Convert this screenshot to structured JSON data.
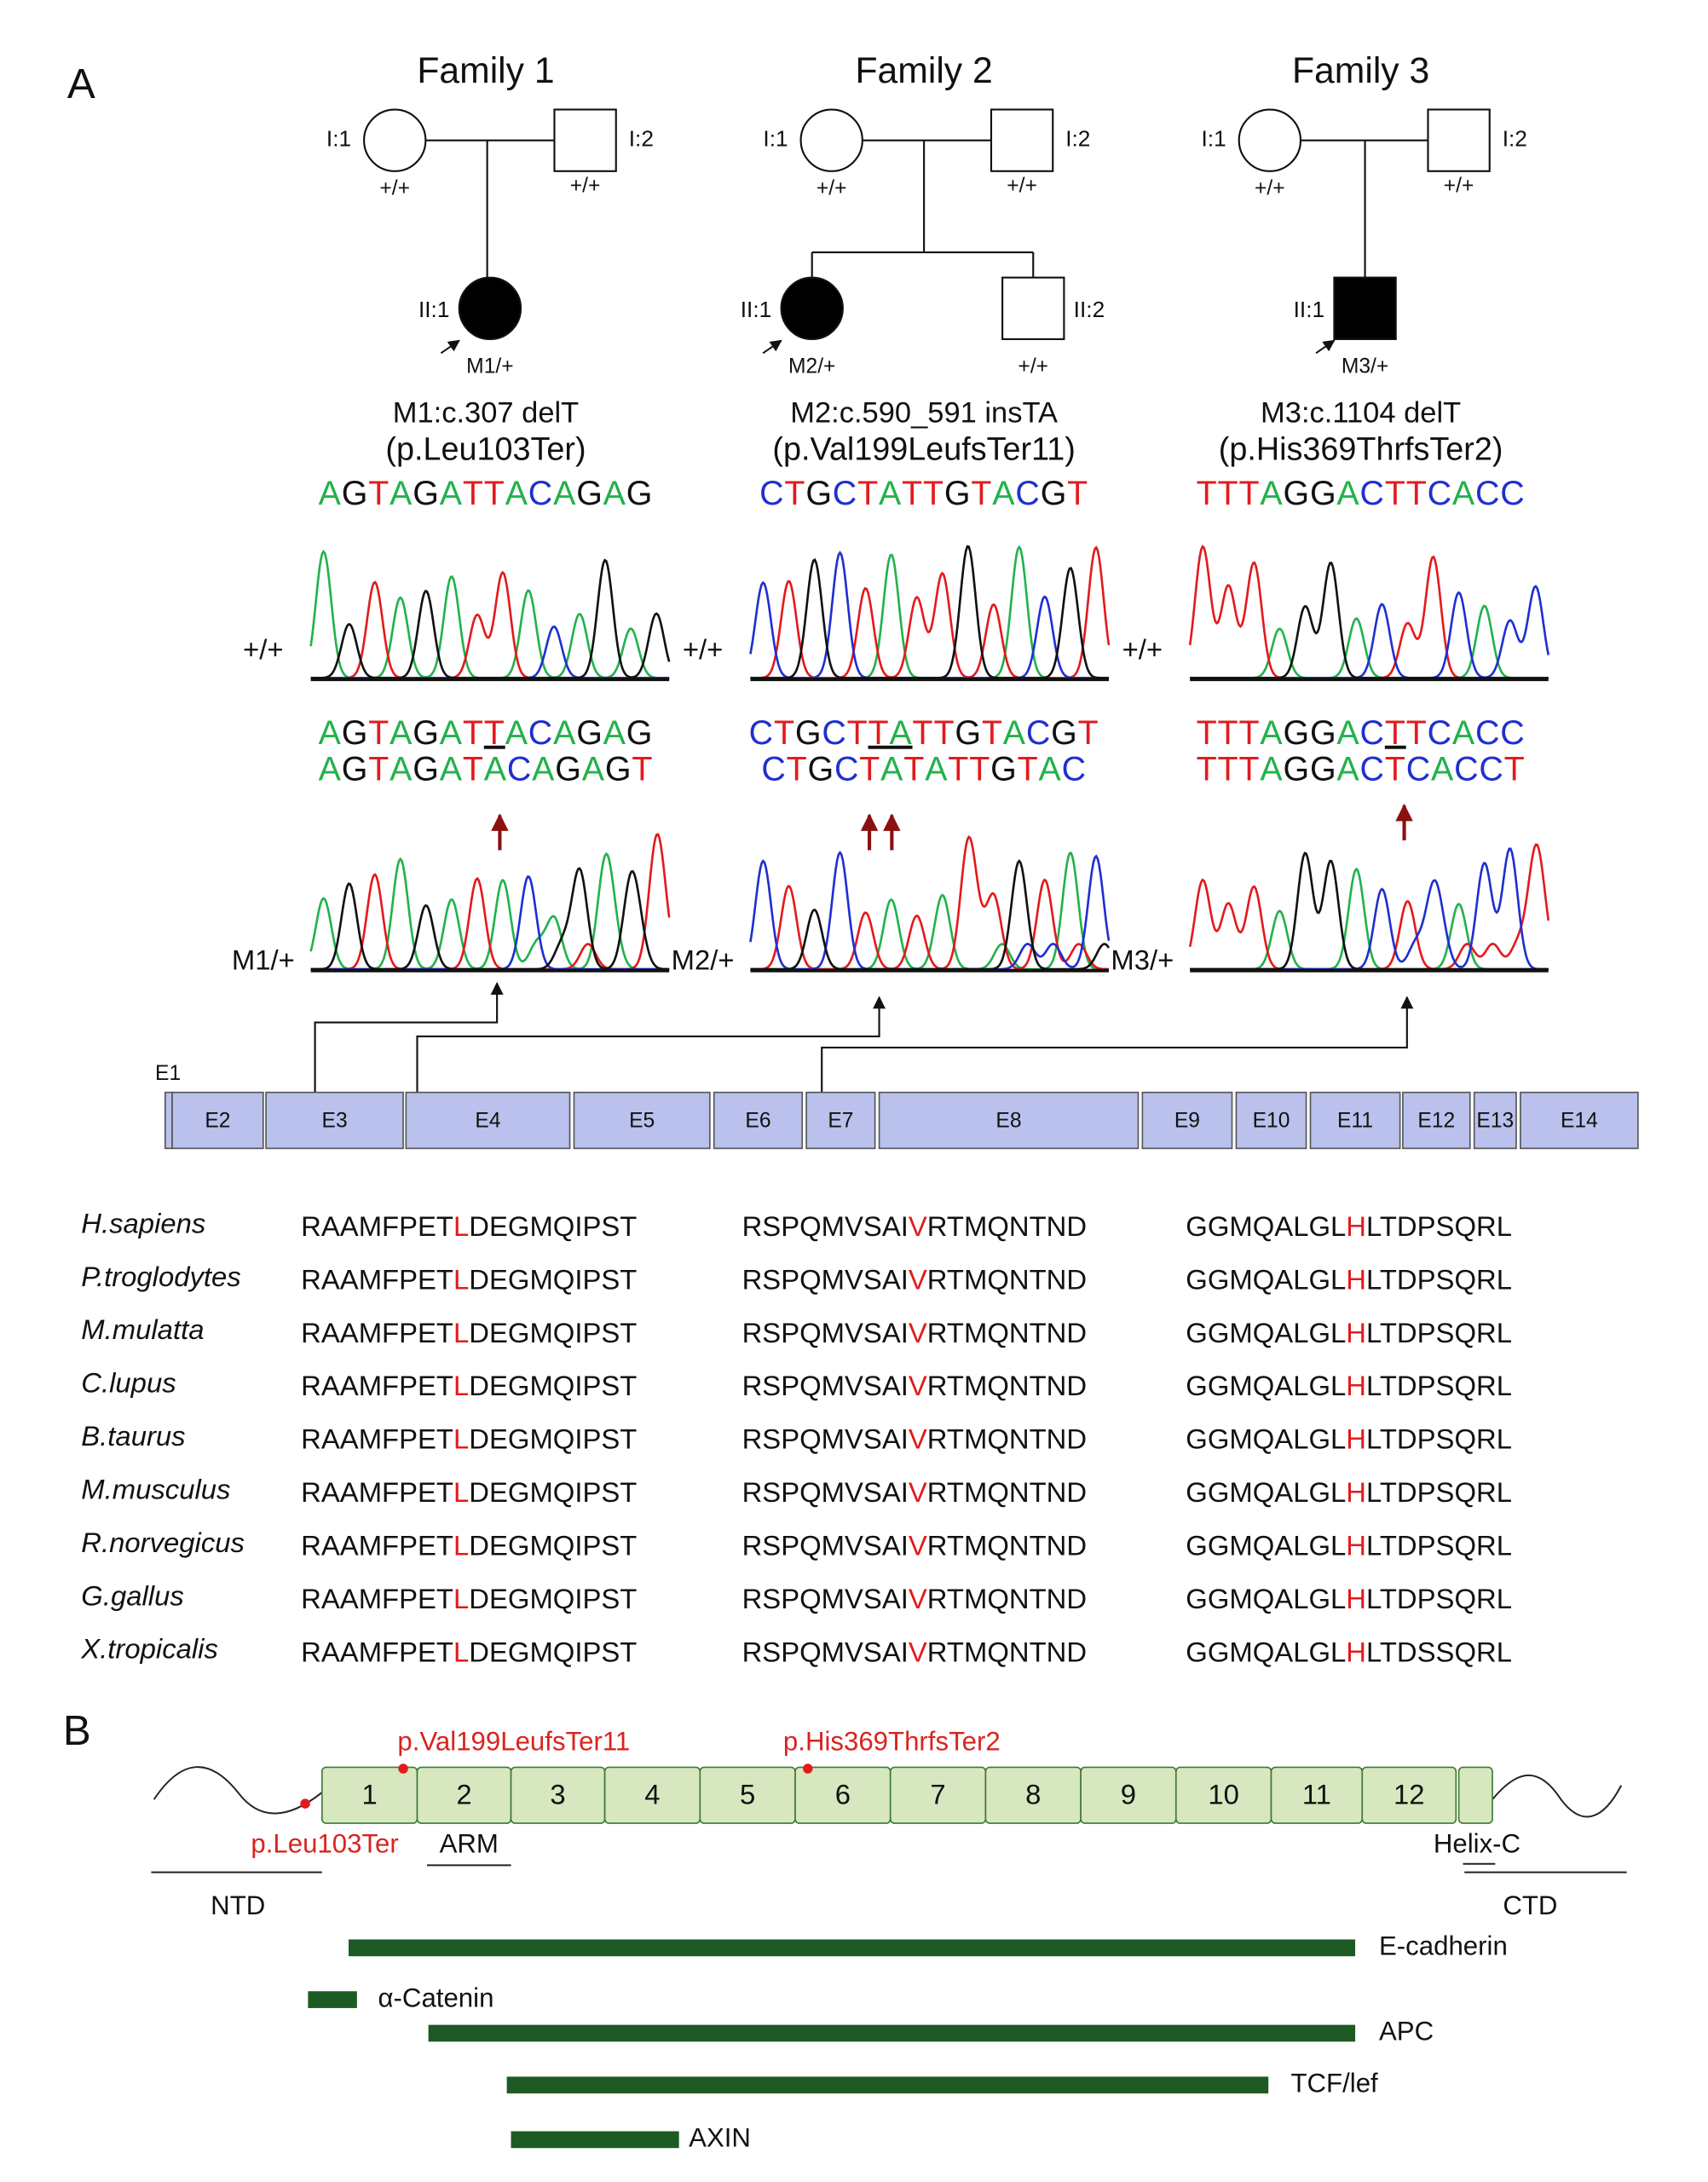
{
  "panel_labels": [
    "A",
    "B"
  ],
  "base_colors": {
    "A": "#22b24c",
    "T": "#e31a1c",
    "C": "#1f2fd0",
    "G": "#111111"
  },
  "families": [
    {
      "title": "Family 1",
      "members": [
        {
          "label": "I:1",
          "genotype": "+/+"
        },
        {
          "label": "I:2",
          "genotype": "+/+"
        },
        {
          "label": "II:1",
          "genotype": "M1/+"
        }
      ],
      "mutation": "M1:c.307 delT",
      "protein": "(p.Leu103Ter)",
      "reference": "AGTAGATTACAGAG",
      "wt_trace_label": "+/+",
      "wt_line": {
        "before": "AGTAGAT",
        "mark": "T",
        "after": "ACAGAG"
      },
      "mut_line": "AGTAGATACAGAGT",
      "mut_trace_label": "M1/+"
    },
    {
      "title": "Family 2",
      "members": [
        {
          "label": "I:1",
          "genotype": "+/+"
        },
        {
          "label": "I:2",
          "genotype": "+/+"
        },
        {
          "label": "II:1",
          "genotype": "M2/+"
        },
        {
          "label": "II:2",
          "genotype": "+/+"
        }
      ],
      "mutation": "M2:c.590_591 insTA",
      "protein": "(p.Val199LeufsTer11)",
      "reference": "CTGCTATTGTACGT",
      "wt_trace_label": "+/+",
      "wt_line": {
        "before": "CTGCT",
        "mark": "TA",
        "after": "TTGTACGT"
      },
      "mut_line": "CTGCTATATTGTAC",
      "mut_trace_label": "M2/+"
    },
    {
      "title": "Family 3",
      "members": [
        {
          "label": "I:1",
          "genotype": "+/+"
        },
        {
          "label": "I:2",
          "genotype": "+/+"
        },
        {
          "label": "II:1",
          "genotype": "M3/+"
        }
      ],
      "mutation": "M3:c.1104 delT",
      "protein": "(p.His369ThrfsTer2)",
      "reference": "TTTAGGACTTCACC",
      "wt_trace_label": "+/+",
      "wt_line": {
        "before": "TTTAGGAC",
        "mark": "T",
        "after": "TCACC"
      },
      "mut_line": "TTTAGGACTCACCT",
      "mut_trace_label": "M3/+"
    }
  ],
  "exons": [
    "E1",
    "E2",
    "E3",
    "E4",
    "E5",
    "E6",
    "E7",
    "E8",
    "E9",
    "E10",
    "E11",
    "E12",
    "E13",
    "E14"
  ],
  "alignment": {
    "species": [
      "H.sapiens",
      "P.troglodytes",
      "M.mulatta",
      "C.lupus",
      "B.taurus",
      "M.musculus",
      "R.norvegicus",
      "G.gallus",
      "X.tropicalis"
    ],
    "rows": [
      [
        {
          "before": "RAAMFPET",
          "site": "L",
          "after": "DEGMQIPST"
        },
        {
          "before": "RSPQMVSAI",
          "site": "V",
          "after": "RTMQNTND"
        },
        {
          "before": "GGMQALGL",
          "site": "H",
          "after": "LTDPSQRL"
        }
      ],
      [
        {
          "before": "RAAMFPET",
          "site": "L",
          "after": "DEGMQIPST"
        },
        {
          "before": "RSPQMVSAI",
          "site": "V",
          "after": "RTMQNTND"
        },
        {
          "before": "GGMQALGL",
          "site": "H",
          "after": "LTDPSQRL"
        }
      ],
      [
        {
          "before": "RAAMFPET",
          "site": "L",
          "after": "DEGMQIPST"
        },
        {
          "before": "RSPQMVSAI",
          "site": "V",
          "after": "RTMQNTND"
        },
        {
          "before": "GGMQALGL",
          "site": "H",
          "after": "LTDPSQRL"
        }
      ],
      [
        {
          "before": "RAAMFPET",
          "site": "L",
          "after": "DEGMQIPST"
        },
        {
          "before": "RSPQMVSAI",
          "site": "V",
          "after": "RTMQNTND"
        },
        {
          "before": "GGMQALGL",
          "site": "H",
          "after": "LTDPSQRL"
        }
      ],
      [
        {
          "before": "RAAMFPET",
          "site": "L",
          "after": "DEGMQIPST"
        },
        {
          "before": "RSPQMVSAI",
          "site": "V",
          "after": "RTMQNTND"
        },
        {
          "before": "GGMQALGL",
          "site": "H",
          "after": "LTDPSQRL"
        }
      ],
      [
        {
          "before": "RAAMFPET",
          "site": "L",
          "after": "DEGMQIPST"
        },
        {
          "before": "RSPQMVSAI",
          "site": "V",
          "after": "RTMQNTND"
        },
        {
          "before": "GGMQALGL",
          "site": "H",
          "after": "LTDPSQRL"
        }
      ],
      [
        {
          "before": "RAAMFPET",
          "site": "L",
          "after": "DEGMQIPST"
        },
        {
          "before": "RSPQMVSAI",
          "site": "V",
          "after": "RTMQNTND"
        },
        {
          "before": "GGMQALGL",
          "site": "H",
          "after": "LTDPSQRL"
        }
      ],
      [
        {
          "before": "RAAMFPET",
          "site": "L",
          "after": "DEGMQIPST"
        },
        {
          "before": "RSPQMVSAI",
          "site": "V",
          "after": "RTMQNTND"
        },
        {
          "before": "GGMQALGL",
          "site": "H",
          "after": "LTDPSQRL"
        }
      ],
      [
        {
          "before": "RAAMFPET",
          "site": "L",
          "after": "DEGMQIPST"
        },
        {
          "before": "RSPQMVSAI",
          "site": "V",
          "after": "RTMQNTND"
        },
        {
          "before": "GGMQALGL",
          "site": "H",
          "after": "LTDSSQRL"
        }
      ]
    ]
  },
  "protein_domains": [
    "1",
    "2",
    "3",
    "4",
    "5",
    "6",
    "7",
    "8",
    "9",
    "10",
    "11",
    "12"
  ],
  "protein_mutations": [
    "p.Leu103Ter",
    "p.Val199LeufsTer11",
    "p.His369ThrfsTer2"
  ],
  "regions": {
    "arm": "ARM",
    "helix": "Helix-C",
    "ntd": "NTD",
    "ctd": "CTD"
  },
  "partners": [
    "E-cadherin",
    "α-Catenin",
    "APC",
    "TCF/lef",
    "AXIN"
  ]
}
